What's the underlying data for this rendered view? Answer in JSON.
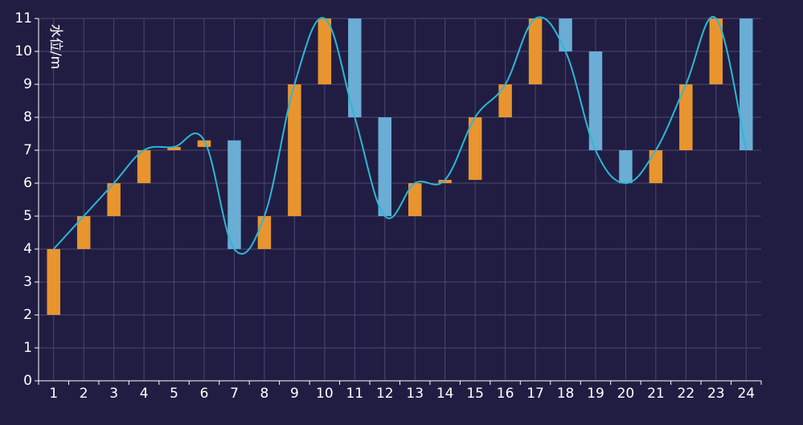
{
  "chart_data": {
    "type": "bar",
    "ylabel": "水位/m",
    "ylim": [
      0,
      11
    ],
    "yticks": [
      0,
      1,
      2,
      3,
      4,
      5,
      6,
      7,
      8,
      9,
      10,
      11
    ],
    "categories": [
      "1",
      "2",
      "3",
      "4",
      "5",
      "6",
      "7",
      "8",
      "9",
      "10",
      "11",
      "12",
      "13",
      "14",
      "15",
      "16",
      "17",
      "18",
      "19",
      "20",
      "21",
      "22",
      "23",
      "24"
    ],
    "grid": true,
    "colors": {
      "rise": "#e8952f",
      "fall": "#6aadd5",
      "line": "#2bb8d6",
      "background": "#211d42",
      "grid": "#4a4670"
    },
    "series": [
      {
        "type": "floating-bar",
        "low": [
          2,
          4,
          5,
          6,
          7.0,
          7.1,
          4,
          4,
          5,
          9,
          8,
          5,
          5,
          6.0,
          6.1,
          8,
          9,
          10,
          7,
          6,
          6,
          7,
          9,
          7
        ],
        "high": [
          4,
          5,
          6,
          7,
          7.1,
          7.3,
          7.3,
          5,
          9,
          11,
          11,
          8,
          6,
          6.1,
          8,
          9,
          11,
          11,
          10,
          7,
          7,
          9,
          11,
          11
        ],
        "direction": [
          "rise",
          "rise",
          "rise",
          "rise",
          "rise",
          "rise",
          "fall",
          "rise",
          "rise",
          "rise",
          "fall",
          "fall",
          "rise",
          "rise",
          "rise",
          "rise",
          "rise",
          "fall",
          "fall",
          "fall",
          "rise",
          "rise",
          "rise",
          "fall"
        ]
      },
      {
        "type": "line",
        "smooth": true,
        "values": [
          4,
          5,
          6,
          7,
          7.1,
          7.3,
          4,
          5,
          9,
          11,
          8,
          5,
          6,
          6.1,
          8,
          9,
          11,
          10,
          7,
          6,
          7,
          9,
          11,
          7
        ]
      }
    ]
  }
}
